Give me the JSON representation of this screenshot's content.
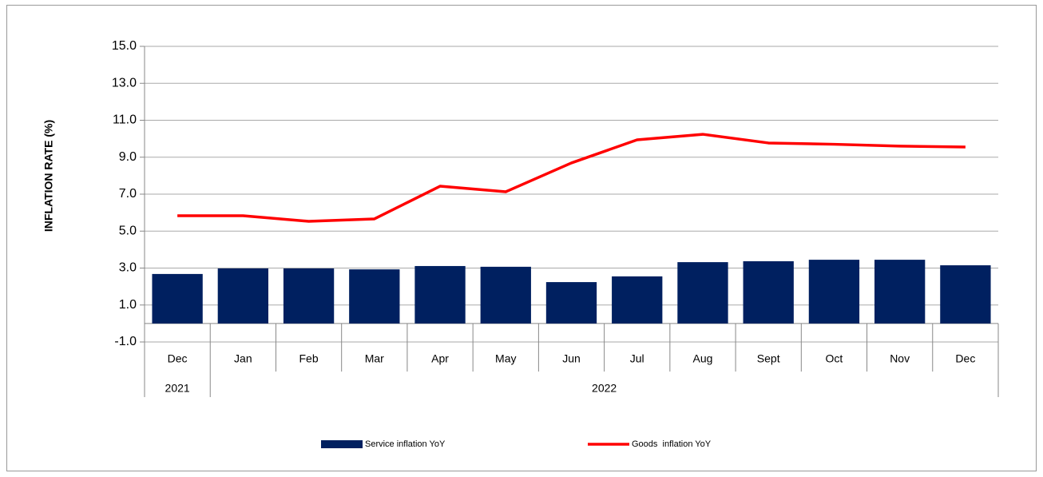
{
  "chart_data": {
    "type": "bar_line",
    "ylabel": "INFLATION RATE (%)",
    "categories": [
      "Dec",
      "Jan",
      "Feb",
      "Mar",
      "Apr",
      "May",
      "Jun",
      "Jul",
      "Aug",
      "Sept",
      "Oct",
      "Nov",
      "Dec"
    ],
    "x_groups": [
      {
        "label": "2021",
        "count": 1
      },
      {
        "label": "2022",
        "count": 12
      }
    ],
    "series": [
      {
        "name": "Service inflation YoY",
        "type": "bar",
        "color": "#002060",
        "values": [
          2.68,
          2.98,
          2.98,
          2.93,
          3.11,
          3.07,
          2.24,
          2.55,
          3.32,
          3.37,
          3.45,
          3.45,
          3.15
        ]
      },
      {
        "name": "Goods  inflation YoY",
        "type": "line",
        "color": "#ff0000",
        "values": [
          5.83,
          5.83,
          5.53,
          5.66,
          7.43,
          7.13,
          8.69,
          9.94,
          10.24,
          9.77,
          9.7,
          9.6,
          9.55
        ]
      }
    ],
    "ylim": [
      -1,
      15
    ],
    "yticks": [
      {
        "value": -1,
        "label": "-1.0"
      },
      {
        "value": 1,
        "label": "1.0"
      },
      {
        "value": 3,
        "label": "3.0"
      },
      {
        "value": 5,
        "label": "5.0"
      },
      {
        "value": 7,
        "label": "7.0"
      },
      {
        "value": 9,
        "label": "9.0"
      },
      {
        "value": 11,
        "label": "11.0"
      },
      {
        "value": 13,
        "label": "13.0"
      },
      {
        "value": 15,
        "label": "15.0"
      }
    ],
    "grid": true,
    "legend": "bottom"
  }
}
